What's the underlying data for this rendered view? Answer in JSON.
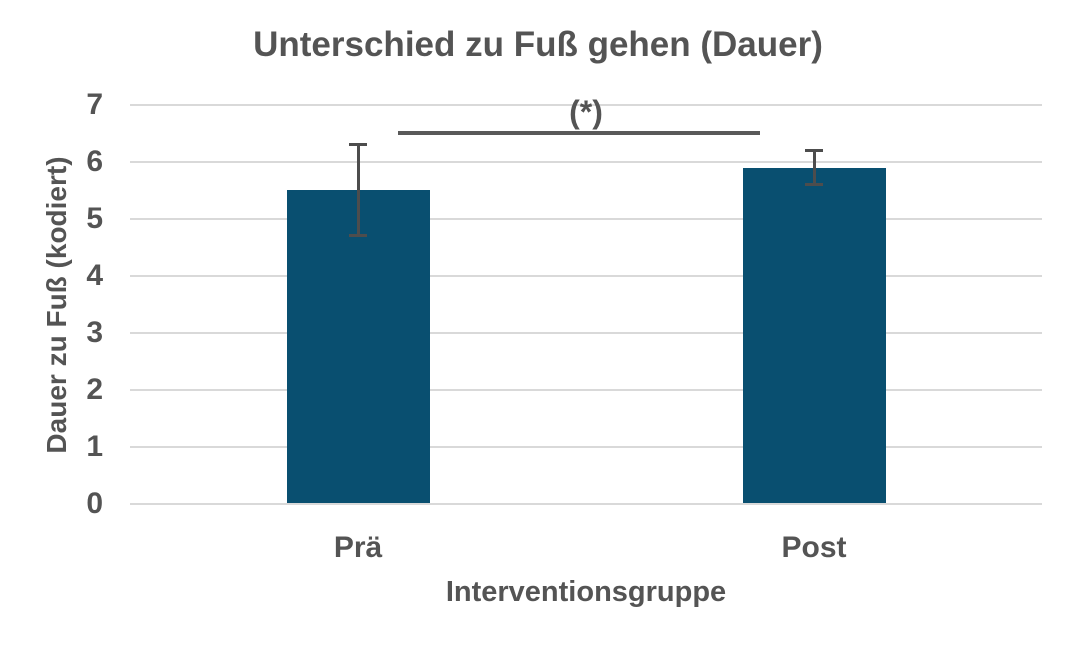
{
  "chart_data": {
    "type": "bar",
    "title": "Unterschied zu Fuß gehen (Dauer)",
    "xlabel": "Interventionsgruppe",
    "ylabel": "Dauer zu Fuß (kodiert)",
    "categories": [
      "Prä",
      "Post"
    ],
    "values": [
      5.5,
      5.9
    ],
    "error_bars": [
      0.8,
      0.3
    ],
    "ylim": [
      0,
      7
    ],
    "yticks": [
      0,
      1,
      2,
      3,
      4,
      5,
      6,
      7
    ],
    "grid": "horizontal-only",
    "legend_position": "none",
    "significance": {
      "label": "(*)",
      "line_y": 6.5,
      "connects": [
        "Prä",
        "Post"
      ]
    },
    "colors": {
      "bar": "#094f70",
      "grid": "#d9d9d9",
      "text": "#545454",
      "error_bar": "#4d4d4d",
      "sig_line": "#595959",
      "background": "#ffffff"
    }
  }
}
